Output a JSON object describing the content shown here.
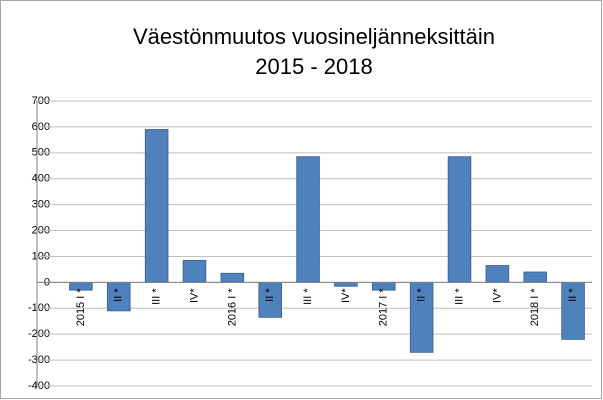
{
  "chart_data": {
    "type": "bar",
    "title": [
      "Väestönmuutos vuosineljänneksittäin",
      "2015 - 2018"
    ],
    "categories": [
      "2015 I *",
      "II *",
      "III *",
      "IV*",
      "2016 I *",
      "II *",
      "III *",
      "IV*",
      "2017 I *",
      "II *",
      "III *",
      "IV*",
      "2018 I *",
      "II *"
    ],
    "values": [
      -30,
      -110,
      590,
      85,
      35,
      -135,
      485,
      -15,
      -30,
      -270,
      485,
      65,
      40,
      -220
    ],
    "color": "#4f81bd",
    "ylim": [
      -400,
      700
    ],
    "yticks": [
      -400,
      -300,
      -200,
      -100,
      0,
      100,
      200,
      300,
      400,
      500,
      600,
      700
    ],
    "grid": true
  }
}
